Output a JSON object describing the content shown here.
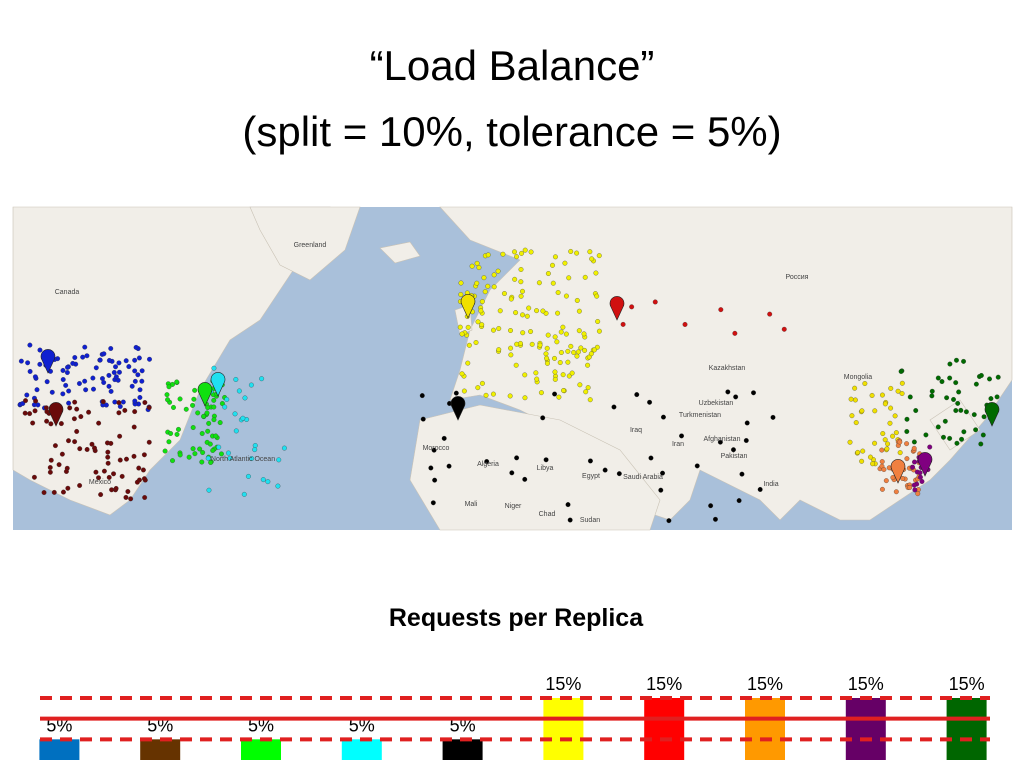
{
  "title": [
    "“Load Balance”",
    "(split = 10%, tolerance = 5%)"
  ],
  "map": {
    "labels": [
      "Greenland",
      "Canada",
      "Россия",
      "Kazakhstan",
      "Mongolia",
      "Algeria",
      "Libya",
      "Egypt",
      "Mali",
      "Niger",
      "Chad",
      "Sudan",
      "India",
      "Iran",
      "Iraq",
      "Morocco",
      "Saudi Arabia",
      "Afghanistan",
      "Pakistan",
      "Turkmenistan",
      "Uzbekistan",
      "México",
      "North Atlantic Ocean"
    ]
  },
  "chart_data": {
    "type": "bar",
    "title": "Requests per Replica",
    "categories": [
      null,
      null,
      null,
      null,
      null,
      null,
      null,
      null,
      null,
      null
    ],
    "values": [
      5,
      5,
      5,
      5,
      5,
      15,
      15,
      15,
      15,
      15
    ],
    "value_labels": [
      "5%",
      "5%",
      "5%",
      "5%",
      "5%",
      "15%",
      "15%",
      "15%",
      "15%",
      "15%"
    ],
    "colors": [
      "#0070c0",
      "#663300",
      "#00ff00",
      "#00ffff",
      "#000000",
      "#ffff00",
      "#ff0000",
      "#ff9900",
      "#660066",
      "#006600"
    ],
    "ylim": [
      0,
      15
    ],
    "reference_lines": [
      {
        "value": 10,
        "style": "solid",
        "color": "#e02020"
      },
      {
        "value": 15,
        "style": "dashed",
        "color": "#e02020"
      },
      {
        "value": 5,
        "style": "dashed",
        "color": "#e02020"
      }
    ]
  }
}
